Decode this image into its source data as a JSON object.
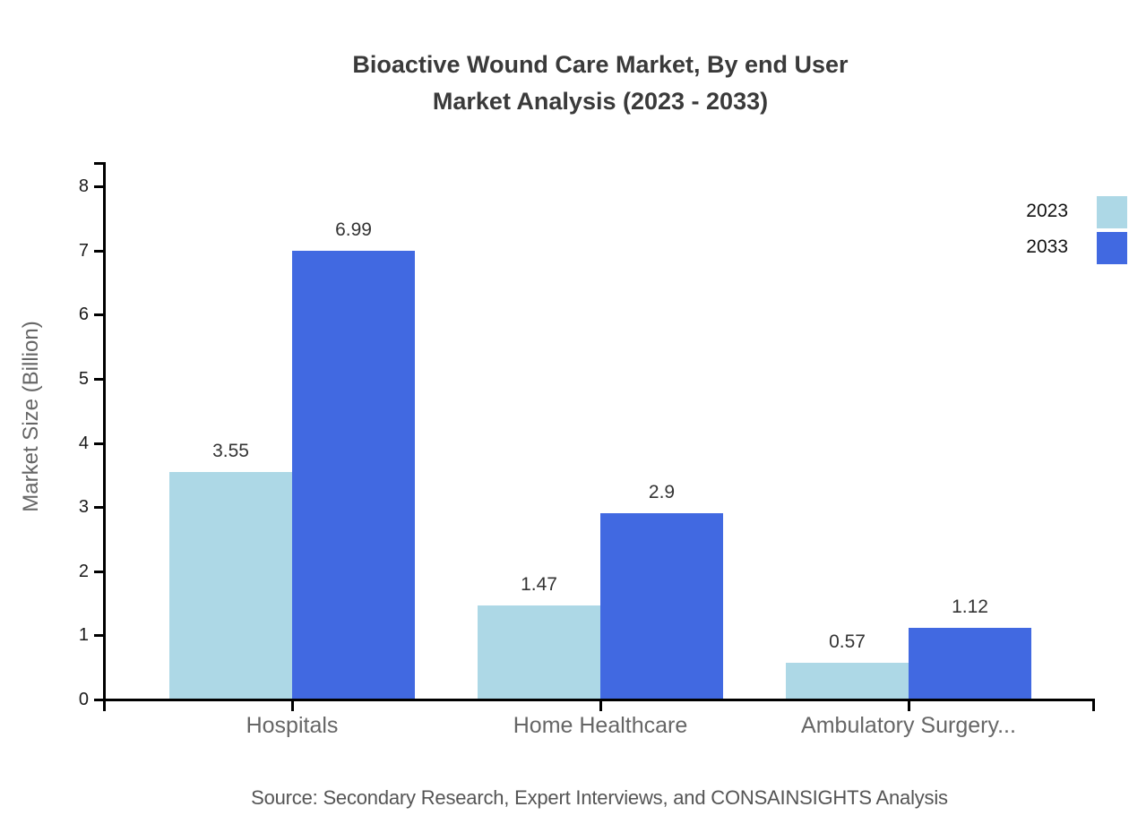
{
  "title": {
    "line1": "Bioactive Wound Care Market, By end User",
    "line2": "Market Analysis (2023 - 2033)"
  },
  "source": "Source: Secondary Research, Expert Interviews, and CONSAINSIGHTS Analysis",
  "legend": [
    {
      "label": "2023",
      "color": "#ADD8E6"
    },
    {
      "label": "2033",
      "color": "#4169E1"
    }
  ],
  "colors": {
    "series_2023": "#ADD8E6",
    "series_2033": "#4169E1",
    "axis": "#000000",
    "title_text": "#3a3a3a",
    "category_text": "#666666",
    "value_text": "#333333",
    "source_text": "#555555"
  },
  "chart_data": {
    "type": "bar",
    "title": "Bioactive Wound Care Market, By end User Market Analysis (2023 - 2033)",
    "categories": [
      "Hospitals",
      "Home Healthcare",
      "Ambulatory Surgery..."
    ],
    "series": [
      {
        "name": "2023",
        "color": "#ADD8E6",
        "values": [
          3.55,
          1.47,
          0.57
        ],
        "labels": [
          "3.55",
          "1.47",
          "0.57"
        ]
      },
      {
        "name": "2033",
        "color": "#4169E1",
        "values": [
          6.99,
          2.9,
          1.12
        ],
        "labels": [
          "6.99",
          "2.9",
          "1.12"
        ]
      }
    ],
    "xlabel": "",
    "ylabel": "Market Size (Billion)",
    "ylim": [
      0,
      8
    ],
    "yticks": [
      0,
      1,
      2,
      3,
      4,
      5,
      6,
      7,
      8
    ],
    "grid": false,
    "legend_position": "top-right",
    "value_labels_shown": true
  }
}
